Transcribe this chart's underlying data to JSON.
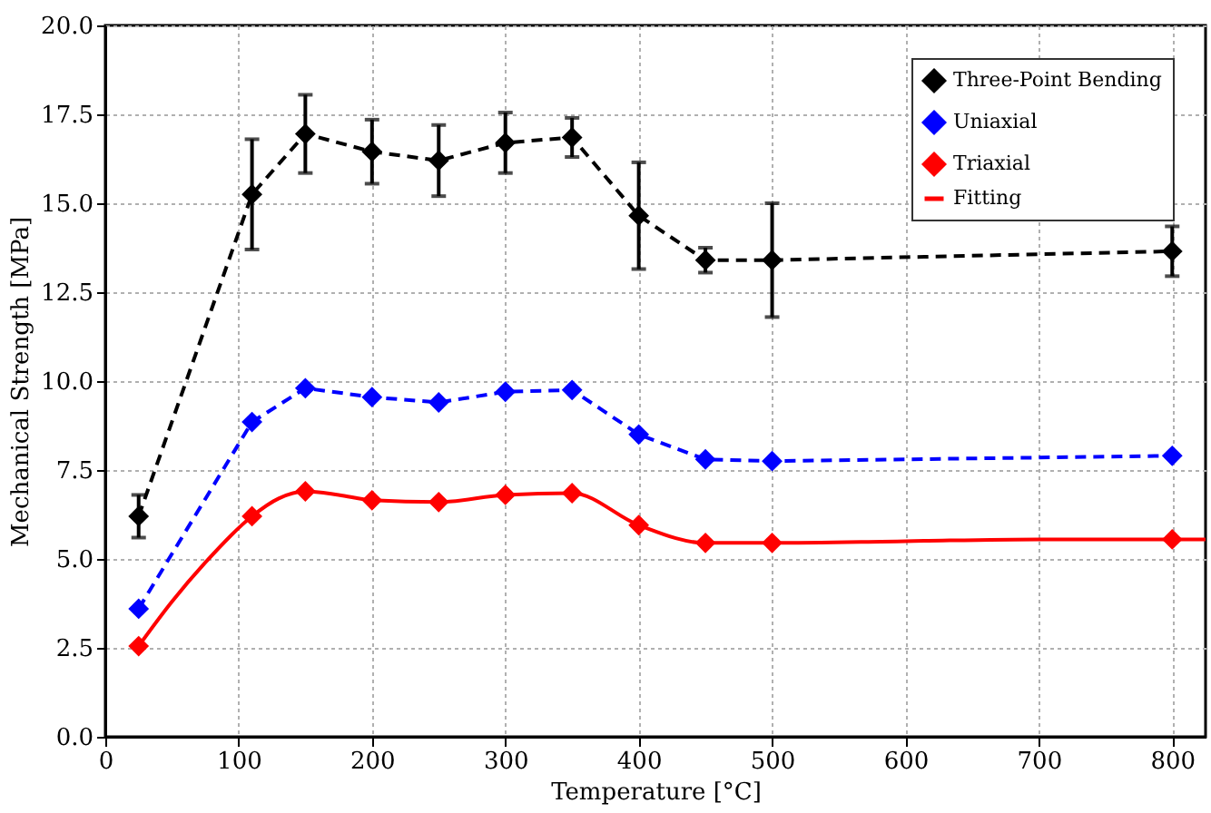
{
  "chart_data": {
    "type": "line",
    "xlabel": "Temperature [°C]",
    "ylabel": "Mechanical Strength [MPa]",
    "x": [
      25,
      110,
      150,
      200,
      250,
      300,
      350,
      400,
      450,
      500,
      800
    ],
    "series": [
      {
        "name": "Three-Point Bending",
        "color": "#000000",
        "marker": "diamond",
        "line_style": "dashed",
        "values": [
          6.2,
          15.25,
          16.95,
          16.45,
          16.2,
          16.7,
          16.85,
          14.65,
          13.4,
          13.4,
          13.65
        ],
        "errors": [
          0.6,
          1.55,
          1.1,
          0.9,
          1.0,
          0.85,
          0.55,
          1.5,
          0.35,
          1.6,
          0.7
        ]
      },
      {
        "name": "Uniaxial",
        "color": "#0000ff",
        "marker": "diamond",
        "line_style": "dashed",
        "values": [
          3.6,
          8.85,
          9.8,
          9.55,
          9.4,
          9.7,
          9.75,
          8.5,
          7.8,
          7.75,
          7.9
        ]
      },
      {
        "name": "Triaxial",
        "color": "#ff0000",
        "type": "scatter",
        "marker": "diamond",
        "values": [
          2.55,
          6.2,
          6.9,
          6.65,
          6.6,
          6.8,
          6.85,
          5.95,
          5.45,
          5.45,
          5.55
        ]
      },
      {
        "name": "Fitting",
        "color": "#ff0000",
        "marker": "none",
        "line_style": "solid",
        "x": [
          25,
          50,
          75,
          110,
          130,
          150,
          175,
          200,
          250,
          300,
          350,
          400,
          450,
          500,
          600,
          700,
          825
        ],
        "values": [
          2.55,
          3.8,
          4.9,
          6.2,
          6.7,
          6.9,
          6.8,
          6.65,
          6.6,
          6.8,
          6.85,
          5.95,
          5.45,
          5.45,
          5.5,
          5.55,
          5.55
        ]
      }
    ],
    "xlim": [
      0,
      825
    ],
    "xticks": [
      0,
      100,
      200,
      300,
      400,
      500,
      600,
      700,
      800
    ],
    "ylim": [
      0,
      20
    ],
    "yticks": [
      {
        "value": 0,
        "label": "0.0"
      },
      {
        "value": 2.5,
        "label": "2.5"
      },
      {
        "value": 5,
        "label": "5.0"
      },
      {
        "value": 7.5,
        "label": "7.5"
      },
      {
        "value": 10,
        "label": "10.0"
      },
      {
        "value": 12.5,
        "label": "12.5"
      },
      {
        "value": 15,
        "label": "15.0"
      },
      {
        "value": 17.5,
        "label": "17.5"
      },
      {
        "value": 20,
        "label": "20.0"
      }
    ],
    "grid": true,
    "legend": "top right"
  }
}
